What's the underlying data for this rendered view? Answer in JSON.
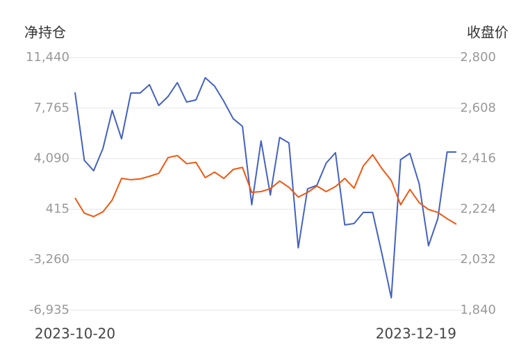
{
  "chart_data": {
    "type": "line",
    "y_label": "净持仓",
    "y2_label": "收盘价",
    "categories": [
      "2023-10-20",
      null,
      null,
      null,
      null,
      null,
      null,
      null,
      null,
      null,
      null,
      null,
      null,
      null,
      null,
      null,
      null,
      null,
      null,
      null,
      null,
      null,
      null,
      null,
      null,
      null,
      null,
      null,
      null,
      null,
      null,
      null,
      null,
      null,
      null,
      null,
      null,
      null,
      null,
      null,
      null,
      "2023-12-19"
    ],
    "series": [
      {
        "name": "净持仓",
        "color": "#4361c2",
        "axis": "y",
        "values": [
          8916,
          3969,
          3212,
          4827,
          7604,
          5534,
          8866,
          8866,
          9471,
          7957,
          8613,
          9623,
          8209,
          8361,
          9976,
          9370,
          8260,
          7000,
          6442,
          738,
          5382,
          1445,
          5635,
          5231,
          -2392,
          1899,
          2152,
          3767,
          4524,
          -726,
          -625,
          183,
          183,
          -2846,
          -6026,
          4019,
          4474,
          2253,
          -2240,
          -272,
          4575,
          4575
        ]
      },
      {
        "name": "收盘价",
        "color": "#f2560d",
        "axis": "y2",
        "values": [
          2267,
          2209,
          2196,
          2214,
          2259,
          2341,
          2336,
          2339,
          2349,
          2360,
          2420,
          2428,
          2397,
          2402,
          2344,
          2365,
          2341,
          2375,
          2383,
          2288,
          2291,
          2302,
          2331,
          2307,
          2270,
          2288,
          2312,
          2291,
          2310,
          2341,
          2304,
          2389,
          2431,
          2378,
          2333,
          2241,
          2299,
          2249,
          2223,
          2212,
          2188,
          2167
        ]
      }
    ],
    "ylim": [
      -6935,
      11440
    ],
    "yticks": [
      {
        "value": -6935,
        "label": "-6,935"
      },
      {
        "value": -3260,
        "label": "-3,260"
      },
      415,
      {
        "value": 4090,
        "label": "4,090"
      },
      {
        "value": 7765,
        "label": "7,765"
      },
      {
        "value": 11440,
        "label": "11,440"
      }
    ],
    "y2lim": [
      1840,
      2800
    ],
    "y2ticks": [
      {
        "value": 1840,
        "label": "1,840"
      },
      {
        "value": 2032,
        "label": "2,032"
      },
      {
        "value": 2224,
        "label": "2,224"
      },
      {
        "value": 2416,
        "label": "2,416"
      },
      {
        "value": 2608,
        "label": "2,608"
      },
      {
        "value": 2800,
        "label": "2,800"
      }
    ],
    "grid": true
  }
}
